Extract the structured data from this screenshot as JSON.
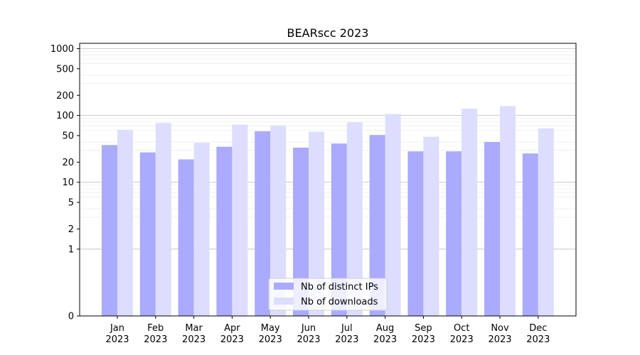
{
  "chart_data": {
    "type": "bar",
    "title": "BEARscc 2023",
    "xlabel": "",
    "ylabel": "",
    "categories": [
      [
        "Jan",
        "2023"
      ],
      [
        "Feb",
        "2023"
      ],
      [
        "Mar",
        "2023"
      ],
      [
        "Apr",
        "2023"
      ],
      [
        "May",
        "2023"
      ],
      [
        "Jun",
        "2023"
      ],
      [
        "Jul",
        "2023"
      ],
      [
        "Aug",
        "2023"
      ],
      [
        "Sep",
        "2023"
      ],
      [
        "Oct",
        "2023"
      ],
      [
        "Nov",
        "2023"
      ],
      [
        "Dec",
        "2023"
      ]
    ],
    "series": [
      {
        "name": "Nb of distinct IPs",
        "color": "#aaaaff",
        "values": [
          36,
          28,
          22,
          34,
          58,
          33,
          38,
          51,
          29,
          29,
          40,
          27
        ]
      },
      {
        "name": "Nb of downloads",
        "color": "#ddddff",
        "values": [
          61,
          77,
          39,
          73,
          71,
          57,
          79,
          105,
          48,
          126,
          138,
          64
        ]
      }
    ],
    "y_scale": "symlog",
    "ylim": [
      0,
      1200
    ],
    "y_ticks": [
      0,
      1,
      2,
      5,
      10,
      20,
      50,
      100,
      200,
      500,
      1000
    ],
    "grid": true,
    "legend_position": "lower center"
  }
}
